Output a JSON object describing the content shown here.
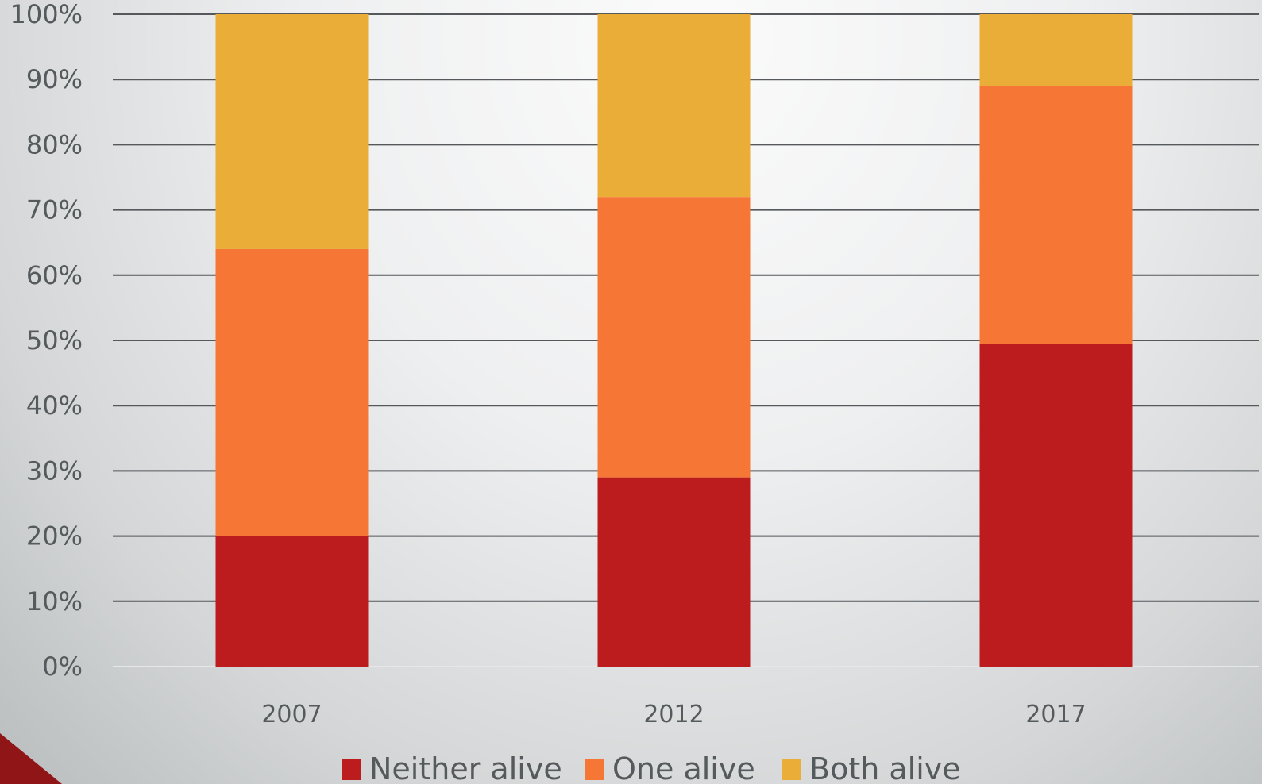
{
  "chart_data": {
    "type": "bar",
    "stacked": true,
    "categories": [
      "2007",
      "2012",
      "2017"
    ],
    "series": [
      {
        "name": "Neither alive",
        "values": [
          20,
          29,
          49.5
        ],
        "color": "#bc1c1d"
      },
      {
        "name": "One alive",
        "values": [
          44,
          43,
          39.5
        ],
        "color": "#f67735"
      },
      {
        "name": "Both alive",
        "values": [
          36,
          28,
          11
        ],
        "color": "#e9ad38"
      }
    ],
    "title": "",
    "xlabel": "",
    "ylabel": "",
    "ylim": [
      0,
      100
    ],
    "yticks": [
      "0%",
      "10%",
      "20%",
      "30%",
      "40%",
      "50%",
      "60%",
      "70%",
      "80%",
      "90%",
      "100%"
    ],
    "grid": true,
    "legend": "bottom-center"
  },
  "decor": {
    "corner_color": "#8f1516"
  }
}
